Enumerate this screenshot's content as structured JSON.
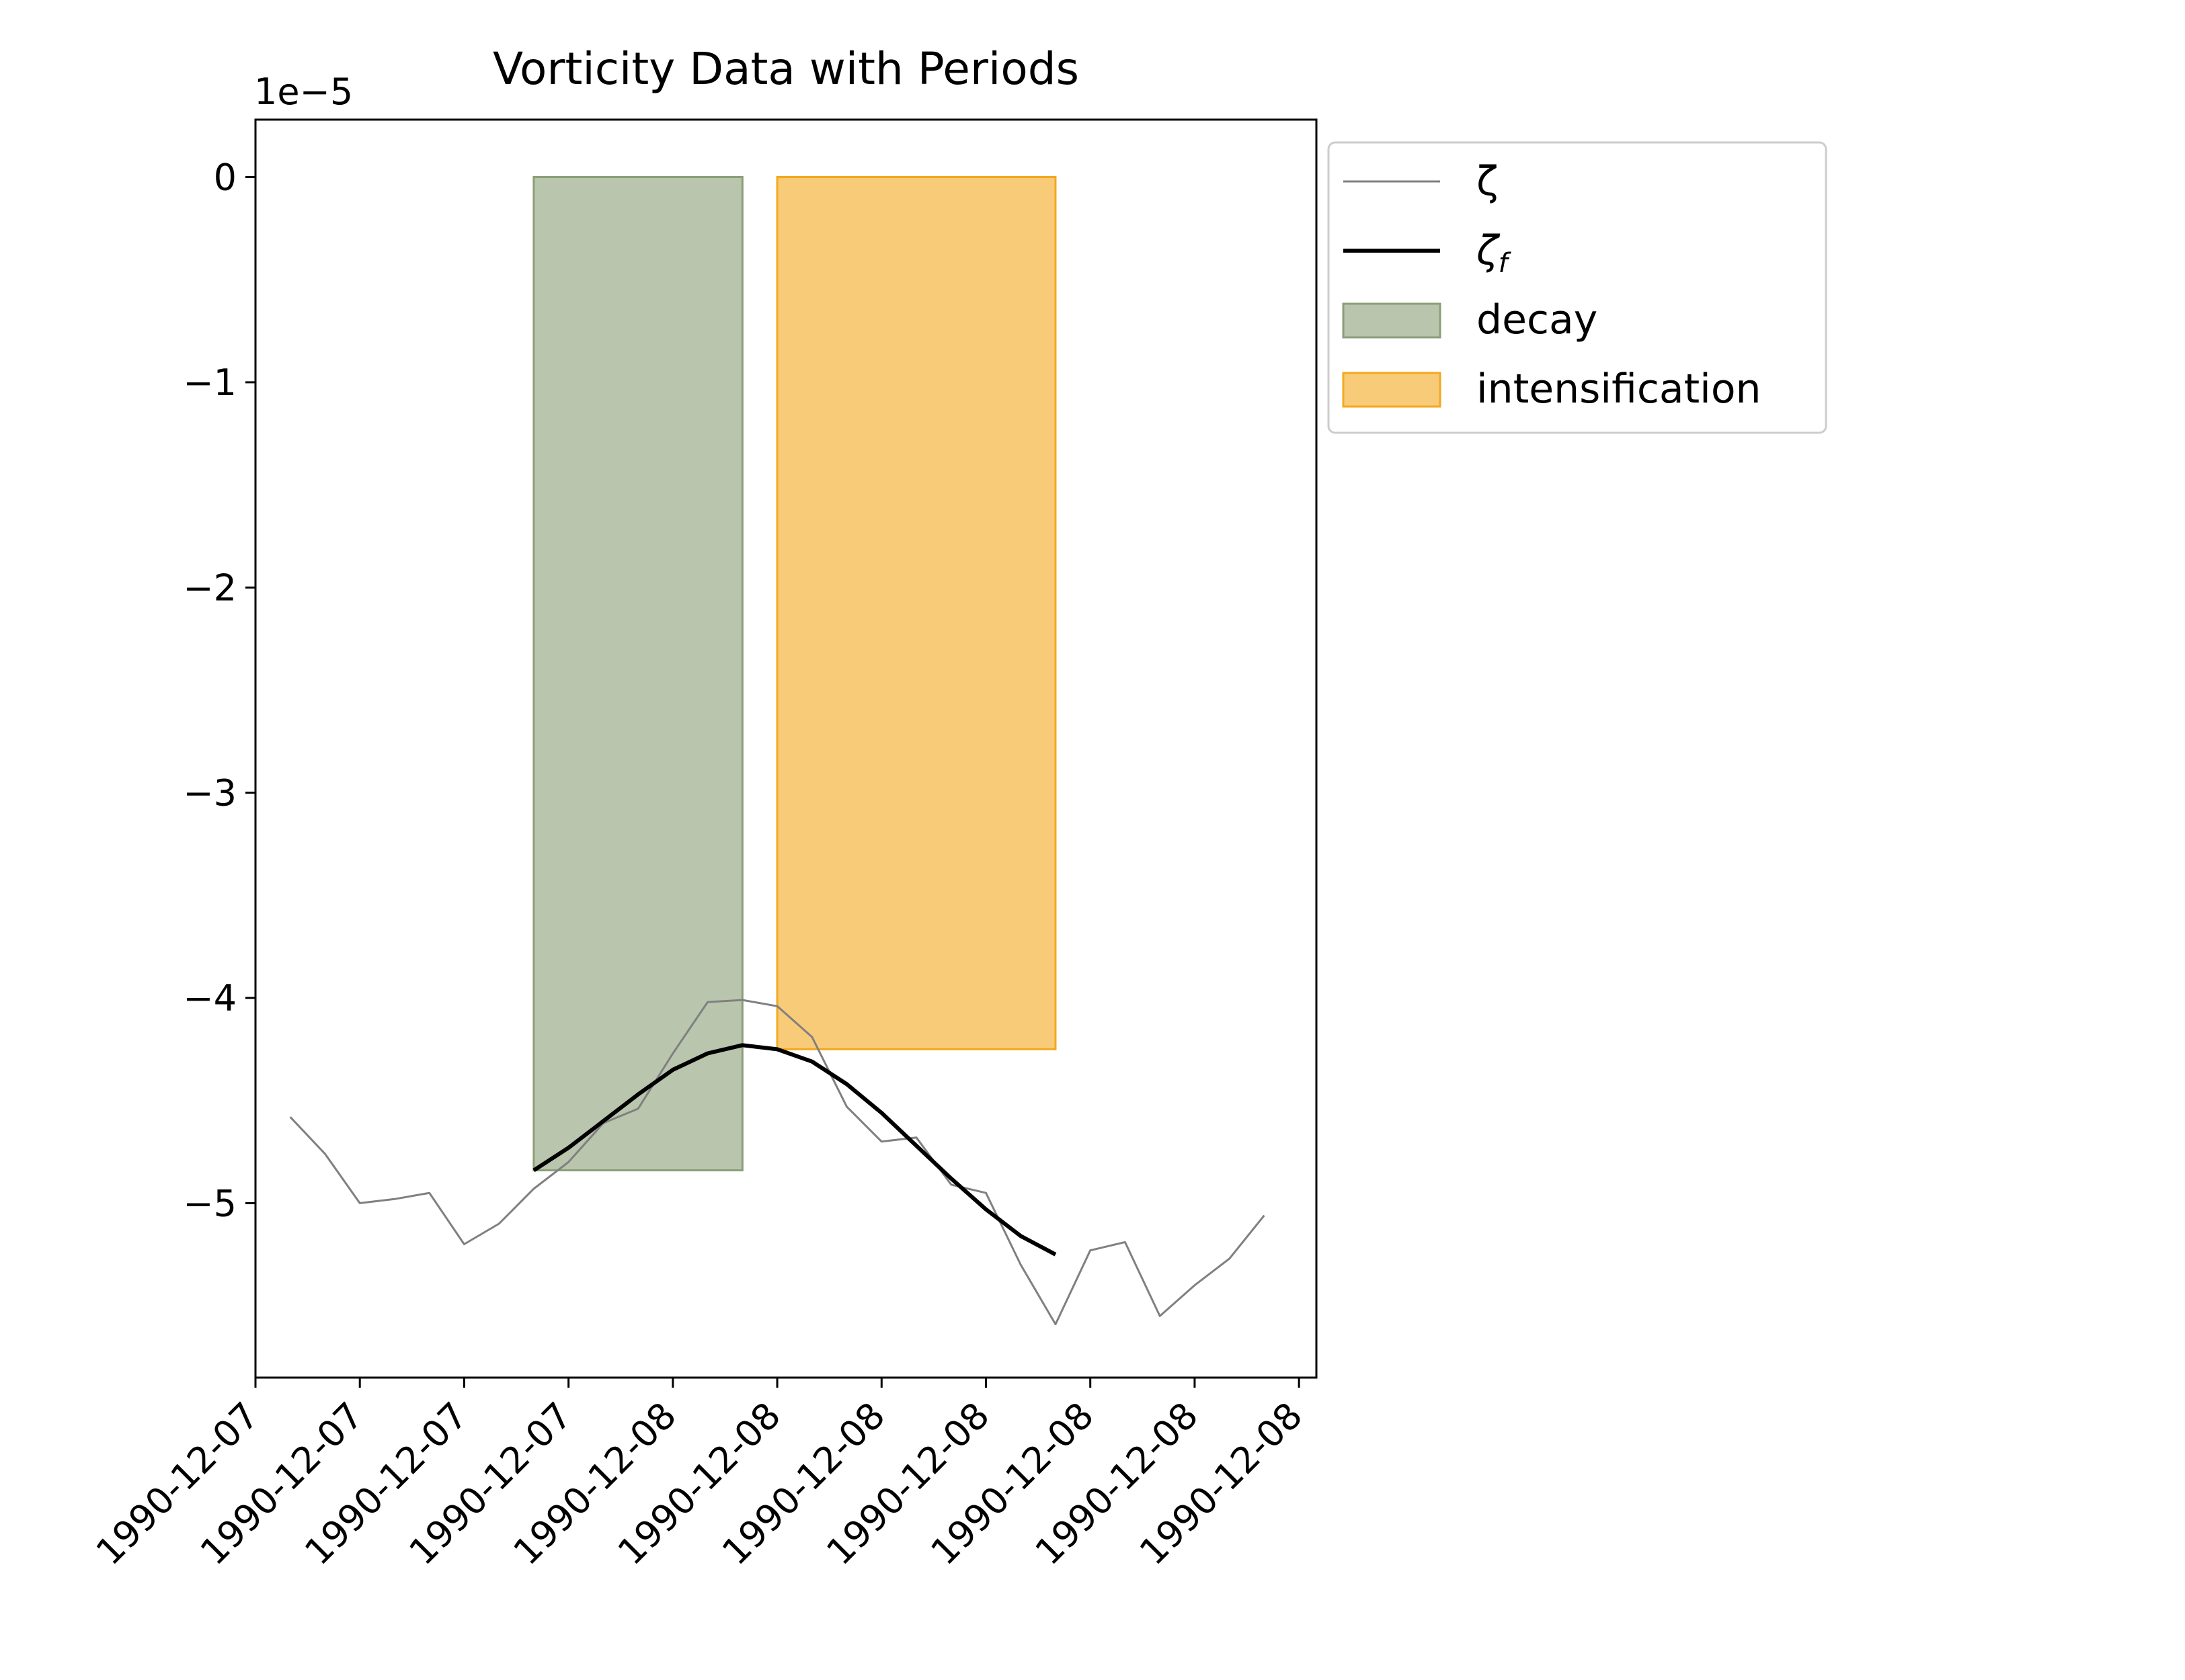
{
  "chart_data": {
    "type": "line",
    "title": "Vorticity Data with Periods",
    "xlabel": "",
    "ylabel": "",
    "y_offset_label": "1e−5",
    "y_scale": 1e-05,
    "x_tick_labels": [
      "1990-12-07",
      "1990-12-07",
      "1990-12-07",
      "1990-12-07",
      "1990-12-08",
      "1990-12-08",
      "1990-12-08",
      "1990-12-08",
      "1990-12-08",
      "1990-12-08",
      "1990-12-08"
    ],
    "y_tick_labels": [
      "0",
      "−1",
      "−2",
      "−3",
      "−4",
      "−5"
    ],
    "y_ticks": [
      0,
      -1,
      -2,
      -3,
      -4,
      -5
    ],
    "xlim": [
      0,
      30.5
    ],
    "ylim": [
      -5.85,
      0.28
    ],
    "legend_position": "outside-upper-right",
    "grid": false,
    "series": [
      {
        "name": "ζ",
        "color": "#808080",
        "x": [
          1,
          2,
          3,
          4,
          5,
          6,
          7,
          8,
          9,
          10,
          11,
          12,
          13,
          14,
          15,
          16,
          17,
          18,
          19,
          20,
          21,
          22,
          23,
          24,
          25,
          26,
          27,
          28,
          29
        ],
        "values": [
          -4.58,
          -4.76,
          -5.0,
          -4.98,
          -4.95,
          -5.2,
          -5.1,
          -4.93,
          -4.8,
          -4.61,
          -4.54,
          -4.27,
          -4.02,
          -4.01,
          -4.04,
          -4.19,
          -4.53,
          -4.7,
          -4.68,
          -4.91,
          -4.95,
          -5.3,
          -5.59,
          -5.23,
          -5.19,
          -5.55,
          -5.4,
          -5.27,
          -5.06
        ]
      },
      {
        "name": "ζf",
        "color": "#000000",
        "x": [
          8,
          9,
          10,
          11,
          12,
          13,
          14,
          15,
          16,
          17,
          18,
          19,
          20,
          21,
          22,
          23
        ],
        "values": [
          -4.84,
          -4.73,
          -4.6,
          -4.47,
          -4.35,
          -4.27,
          -4.23,
          -4.25,
          -4.31,
          -4.42,
          -4.56,
          -4.72,
          -4.88,
          -5.03,
          -5.16,
          -5.25
        ]
      }
    ],
    "periods": [
      {
        "name": "decay",
        "color": "#8a9f77",
        "x_start": 8,
        "x_end": 14
      },
      {
        "name": "intensification",
        "color": "#f3a81e",
        "x_start": 15,
        "x_end": 23
      }
    ]
  }
}
